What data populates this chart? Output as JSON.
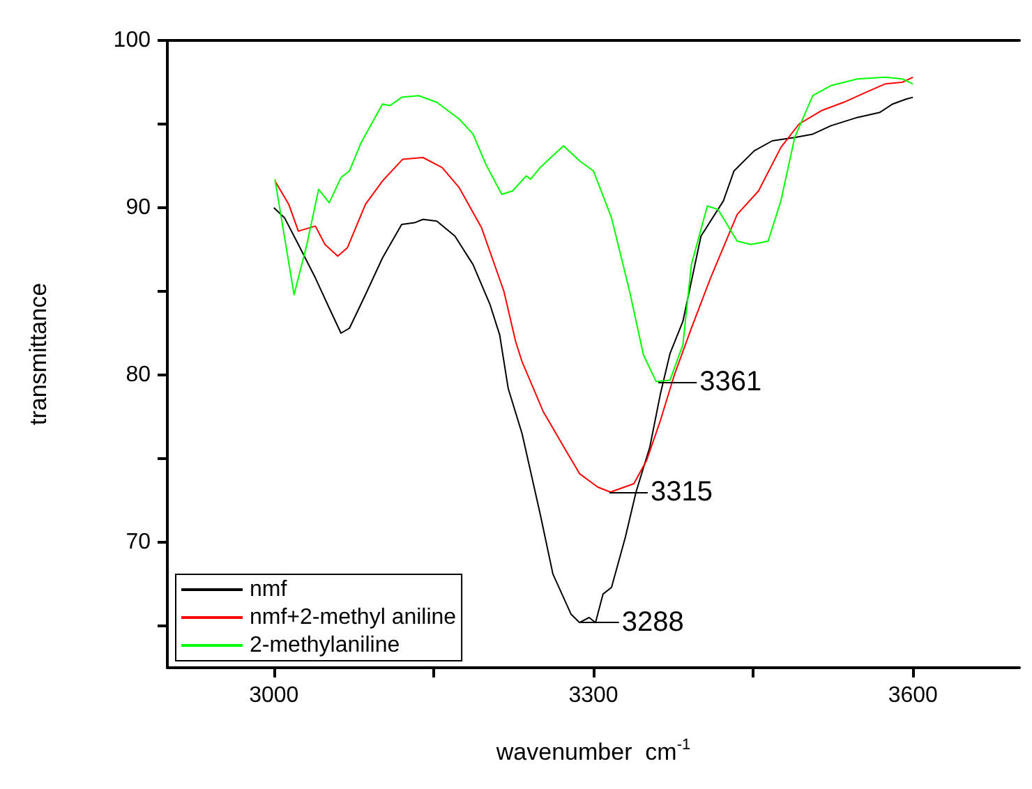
{
  "chart_data": {
    "type": "line",
    "xlabel": "wavenumber  cm$^{-1}$",
    "ylabel": "transmittance",
    "xlim": [
      2900,
      3700
    ],
    "ylim": [
      62.5,
      100
    ],
    "xticks": [
      3000,
      {
        "value": 3150,
        "label": null
      },
      3300,
      {
        "value": 3450,
        "label": null
      },
      3600
    ],
    "yticks": [
      {
        "value": 65,
        "label": null
      },
      70,
      {
        "value": 75,
        "label": null
      },
      80,
      {
        "value": 85,
        "label": null
      },
      90,
      {
        "value": 95,
        "label": null
      },
      100
    ],
    "legend": "bottom left",
    "grid": false,
    "marker": "none",
    "line_style": "solid",
    "annotations": [
      {
        "text": "3361",
        "x": 3361,
        "y": 79.6
      },
      {
        "text": "3315",
        "x": 3315,
        "y": 73
      },
      {
        "text": "3288",
        "x": 3288,
        "y": 65.2
      }
    ],
    "series": [
      {
        "name": "nmf",
        "color": "#000000",
        "x": [
          3000,
          3010,
          3023,
          3039,
          3052,
          3063,
          3071,
          3086,
          3102,
          3120,
          3132,
          3140,
          3153,
          3170,
          3187,
          3203,
          3212,
          3220,
          3233,
          3250,
          3262,
          3279,
          3287,
          3296,
          3302,
          3309,
          3317,
          3330,
          3340,
          3353,
          3363,
          3372,
          3384,
          3401,
          3422,
          3432,
          3451,
          3468,
          3489,
          3506,
          3523,
          3548,
          3569,
          3581,
          3594,
          3600
        ],
        "values": [
          90,
          89.4,
          87.8,
          85.8,
          84,
          82.5,
          82.8,
          84.8,
          87,
          89,
          89.1,
          89.3,
          89.2,
          88.3,
          86.6,
          84.2,
          82.4,
          79.2,
          76.5,
          71.7,
          68.1,
          65.7,
          65.2,
          65.5,
          65.2,
          66.9,
          67.3,
          70.3,
          73,
          75.7,
          78.9,
          81.3,
          83.2,
          88.3,
          90.4,
          92.2,
          93.4,
          94,
          94.2,
          94.4,
          94.9,
          95.4,
          95.7,
          96.2,
          96.5,
          96.6
        ]
      },
      {
        "name": "nmf+2-methyl aniline",
        "color": "#ff0000",
        "x": [
          3001,
          3014,
          3023,
          3039,
          3048,
          3060,
          3069,
          3086,
          3102,
          3121,
          3140,
          3158,
          3174,
          3195,
          3216,
          3227,
          3233,
          3253,
          3275,
          3287,
          3304,
          3316,
          3338,
          3350,
          3363,
          3376,
          3392,
          3410,
          3435,
          3455,
          3476,
          3493,
          3514,
          3535,
          3556,
          3574,
          3590,
          3600
        ],
        "values": [
          91.6,
          90.2,
          88.6,
          88.9,
          87.8,
          87.1,
          87.6,
          90.2,
          91.6,
          92.9,
          93,
          92.4,
          91.2,
          88.8,
          85,
          82,
          80.8,
          77.8,
          75.4,
          74.1,
          73.3,
          73,
          73.5,
          74.9,
          77.3,
          80,
          82.8,
          85.8,
          89.6,
          91,
          93.6,
          95,
          95.8,
          96.3,
          96.9,
          97.4,
          97.5,
          97.8
        ]
      },
      {
        "name": "2-methylaniline",
        "color": "#00ff00",
        "x": [
          3001,
          3019,
          3031,
          3042,
          3052,
          3063,
          3071,
          3082,
          3102,
          3109,
          3120,
          3136,
          3153,
          3174,
          3187,
          3199,
          3214,
          3224,
          3237,
          3241,
          3250,
          3260,
          3272,
          3287,
          3300,
          3317,
          3334,
          3347,
          3359,
          3372,
          3384,
          3392,
          3407,
          3417,
          3435,
          3448,
          3464,
          3476,
          3489,
          3506,
          3523,
          3548,
          3574,
          3590,
          3600
        ],
        "values": [
          91.7,
          84.8,
          87.8,
          91.1,
          90.3,
          91.8,
          92.2,
          93.9,
          96.2,
          96.1,
          96.6,
          96.7,
          96.3,
          95.3,
          94.4,
          92.6,
          90.8,
          91,
          91.9,
          91.7,
          92.4,
          93,
          93.7,
          92.8,
          92.2,
          89.4,
          85,
          81.2,
          79.6,
          79.7,
          81.8,
          86.6,
          90.1,
          89.9,
          88,
          87.8,
          88,
          90.4,
          94.2,
          96.7,
          97.3,
          97.7,
          97.8,
          97.7,
          97.4
        ]
      }
    ]
  }
}
